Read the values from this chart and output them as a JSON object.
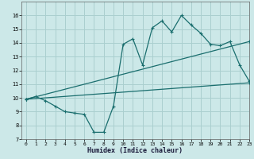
{
  "bg_color": "#cce8e8",
  "grid_color": "#aacfcf",
  "line_color": "#1a6e6e",
  "x_label": "Humidex (Indice chaleur)",
  "ylim": [
    7,
    17
  ],
  "xlim": [
    -0.5,
    23
  ],
  "yticks": [
    7,
    8,
    9,
    10,
    11,
    12,
    13,
    14,
    15,
    16
  ],
  "xticks": [
    0,
    1,
    2,
    3,
    4,
    5,
    6,
    7,
    8,
    9,
    10,
    11,
    12,
    13,
    14,
    15,
    16,
    17,
    18,
    19,
    20,
    21,
    22,
    23
  ],
  "series1_x": [
    0,
    1,
    2,
    3,
    4,
    5,
    6,
    7,
    8,
    9,
    10,
    11,
    12,
    13,
    14,
    15,
    16,
    17,
    18,
    19,
    20,
    21,
    22,
    23
  ],
  "series1_y": [
    9.9,
    10.1,
    9.8,
    9.4,
    9.0,
    8.9,
    8.8,
    7.5,
    7.5,
    9.4,
    13.9,
    14.3,
    12.4,
    15.1,
    15.6,
    14.8,
    16.0,
    15.3,
    14.7,
    13.9,
    13.8,
    14.1,
    12.4,
    11.2
  ],
  "series2_x": [
    0,
    23
  ],
  "series2_y": [
    9.9,
    14.1
  ],
  "series3_x": [
    0,
    23
  ],
  "series3_y": [
    9.9,
    11.1
  ],
  "marker": "+"
}
